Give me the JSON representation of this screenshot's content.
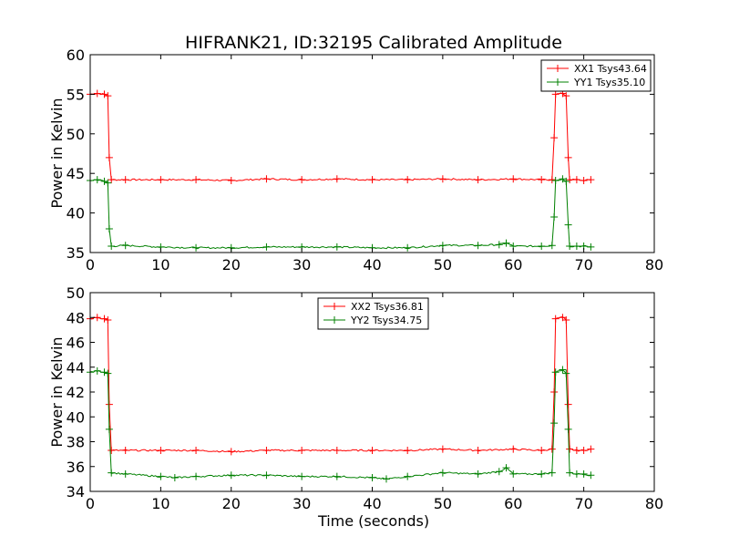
{
  "chart_data": [
    {
      "type": "line",
      "title": "HIFRANK21, ID:32195 Calibrated Amplitude",
      "xlabel": "",
      "ylabel": "Power in Kelvin",
      "xlim": [
        0,
        80
      ],
      "ylim": [
        35,
        60
      ],
      "xticks": [
        0,
        10,
        20,
        30,
        40,
        50,
        60,
        70,
        80
      ],
      "yticks": [
        35,
        40,
        45,
        50,
        55,
        60
      ],
      "legend_position": "top-right",
      "series": [
        {
          "name": "XX1 Tsys43.64",
          "color": "#ff0000",
          "x": [
            0,
            1,
            2,
            2.5,
            2.7,
            3,
            5,
            10,
            15,
            20,
            25,
            30,
            35,
            40,
            45,
            50,
            55,
            60,
            64,
            65.5,
            65.8,
            66,
            67,
            67.5,
            67.8,
            68,
            69,
            70,
            71
          ],
          "y": [
            55,
            55.1,
            55,
            54.8,
            47,
            44.2,
            44.2,
            44.2,
            44.2,
            44.1,
            44.3,
            44.2,
            44.3,
            44.2,
            44.2,
            44.3,
            44.2,
            44.3,
            44.2,
            44.2,
            49.5,
            55,
            55.1,
            54.8,
            47,
            44.2,
            44.2,
            44.1,
            44.2
          ]
        },
        {
          "name": "YY1 Tsys35.10",
          "color": "#008000",
          "x": [
            0,
            1,
            2,
            2.5,
            2.7,
            3,
            5,
            10,
            15,
            20,
            25,
            30,
            35,
            40,
            45,
            50,
            55,
            58,
            59,
            60,
            64,
            65.5,
            65.8,
            66,
            67,
            67.5,
            67.8,
            68,
            69,
            70,
            71
          ],
          "y": [
            44.1,
            44.2,
            44,
            43.8,
            38,
            35.8,
            35.9,
            35.7,
            35.6,
            35.6,
            35.7,
            35.7,
            35.7,
            35.6,
            35.6,
            35.9,
            35.9,
            36,
            36.2,
            35.8,
            35.8,
            35.9,
            39.5,
            44.1,
            44.3,
            44,
            38.5,
            35.8,
            35.8,
            35.8,
            35.7
          ]
        }
      ]
    },
    {
      "type": "line",
      "title": "",
      "xlabel": "Time (seconds)",
      "ylabel": "Power in Kelvin",
      "xlim": [
        0,
        80
      ],
      "ylim": [
        34,
        50
      ],
      "xticks": [
        0,
        10,
        20,
        30,
        40,
        50,
        60,
        70,
        80
      ],
      "yticks": [
        34,
        36,
        38,
        40,
        42,
        44,
        46,
        48,
        50
      ],
      "legend_position": "top-center",
      "series": [
        {
          "name": "XX2 Tsys36.81",
          "color": "#ff0000",
          "x": [
            0,
            1,
            2,
            2.5,
            2.7,
            3,
            5,
            10,
            15,
            20,
            25,
            30,
            35,
            40,
            45,
            50,
            55,
            60,
            64,
            65.5,
            65.8,
            66,
            67,
            67.5,
            67.8,
            68,
            69,
            70,
            71
          ],
          "y": [
            47.9,
            48,
            47.9,
            47.8,
            41,
            37.3,
            37.3,
            37.3,
            37.3,
            37.2,
            37.3,
            37.3,
            37.3,
            37.3,
            37.3,
            37.4,
            37.3,
            37.4,
            37.3,
            37.4,
            42,
            47.9,
            48,
            47.8,
            41,
            37.4,
            37.3,
            37.3,
            37.4
          ]
        },
        {
          "name": "YY2 Tsys34.75",
          "color": "#008000",
          "x": [
            0,
            1,
            2,
            2.5,
            2.7,
            3,
            5,
            10,
            12,
            15,
            20,
            25,
            30,
            35,
            40,
            42,
            45,
            50,
            55,
            58,
            59,
            60,
            64,
            65.5,
            65.8,
            66,
            67,
            67.5,
            67.8,
            68,
            69,
            70,
            71
          ],
          "y": [
            43.6,
            43.7,
            43.6,
            43.5,
            39,
            35.5,
            35.4,
            35.2,
            35.1,
            35.2,
            35.3,
            35.3,
            35.2,
            35.2,
            35.1,
            35,
            35.2,
            35.5,
            35.4,
            35.6,
            35.9,
            35.4,
            35.4,
            35.5,
            39.5,
            43.6,
            43.8,
            43.5,
            39,
            35.5,
            35.4,
            35.4,
            35.3
          ]
        }
      ]
    }
  ]
}
